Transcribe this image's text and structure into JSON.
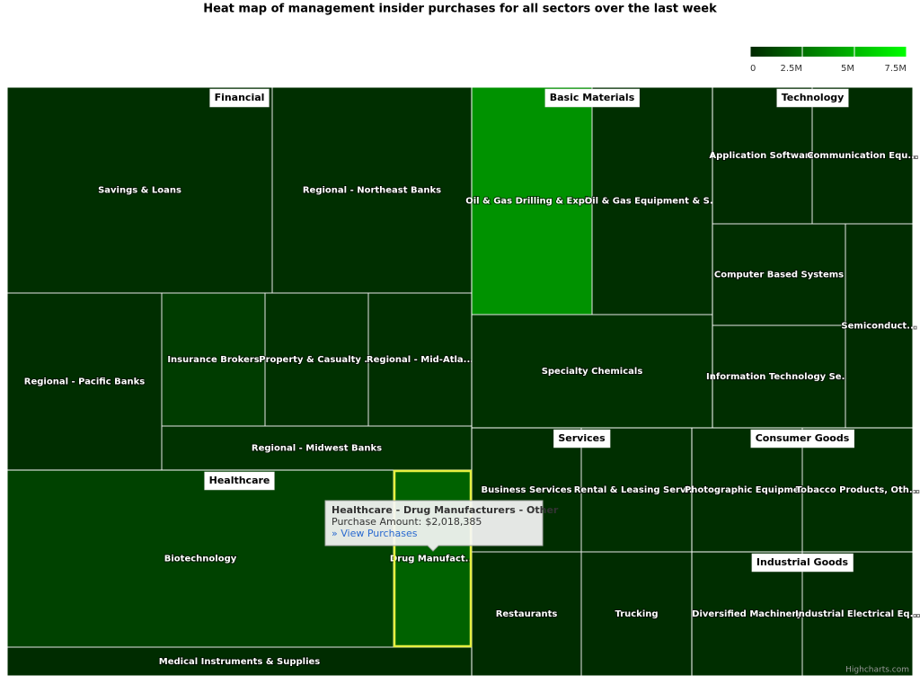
{
  "chart_data": {
    "type": "treemap",
    "title": "Heat map of management insider purchases for all sectors over the last week",
    "colorAxis": {
      "lim": [
        0,
        7500000
      ],
      "ticks": [
        0,
        {
          "value": 2500000,
          "label": "2.5M"
        },
        {
          "value": 5000000,
          "label": "5M"
        },
        {
          "value": 7500000,
          "label": "7.5M"
        }
      ],
      "minColor": "#002800",
      "maxColor": "#00ff00"
    },
    "groups": [
      {
        "name": "Financial",
        "leaves": [
          {
            "name": "Savings & Loans",
            "value": 250000
          },
          {
            "name": "Regional - Northeast Banks",
            "value": 250000
          },
          {
            "name": "Regional - Pacific Banks",
            "value": 200000
          },
          {
            "name": "Insurance Brokers",
            "value": 700000
          },
          {
            "name": "Property & Casualty ...",
            "value": 300000
          },
          {
            "name": "Regional - Mid-Atla...",
            "value": 250000
          },
          {
            "name": "Regional - Midwest Banks",
            "value": 350000
          }
        ]
      },
      {
        "name": "Healthcare",
        "leaves": [
          {
            "name": "Biotechnology",
            "value": 900000
          },
          {
            "name": "Drug Manufact...",
            "value": 2018385
          },
          {
            "name": "Medical Instruments & Supplies",
            "value": 150000
          }
        ]
      },
      {
        "name": "Basic Materials",
        "leaves": [
          {
            "name": "Oil & Gas Drilling & Expl...",
            "value": 3700000
          },
          {
            "name": "Oil & Gas Equipment & S...",
            "value": 250000
          },
          {
            "name": "Specialty Chemicals",
            "value": 300000
          }
        ]
      },
      {
        "name": "Technology",
        "leaves": [
          {
            "name": "Application Software",
            "value": 150000
          },
          {
            "name": "Communication Equ...",
            "value": 150000
          },
          {
            "name": "Computer Based Systems",
            "value": 200000
          },
          {
            "name": "Information Technology Se...",
            "value": 200000
          },
          {
            "name": "Semiconduct...",
            "value": 150000
          }
        ]
      },
      {
        "name": "Services",
        "leaves": [
          {
            "name": "Business Services",
            "value": 200000
          },
          {
            "name": "Rental & Leasing Servi...",
            "value": 250000
          },
          {
            "name": "Restaurants",
            "value": 150000
          },
          {
            "name": "Trucking",
            "value": 150000
          }
        ]
      },
      {
        "name": "Consumer Goods",
        "leaves": [
          {
            "name": "Photographic Equipme...",
            "value": 200000
          },
          {
            "name": "Tobacco Products, Oth...",
            "value": 250000
          }
        ]
      },
      {
        "name": "Industrial Goods",
        "leaves": [
          {
            "name": "Diversified Machinery",
            "value": 200000
          },
          {
            "name": "Industrial Electrical Eq...",
            "value": 150000
          }
        ]
      }
    ],
    "tooltip": {
      "title": "Healthcare - Drug Manufacturers - Other",
      "amount_label": "Purchase Amount:",
      "amount": {
        "value": 2018385,
        "label": "$2,018,385"
      },
      "link": "» View Purchases"
    },
    "credits": "Highcharts.com"
  }
}
